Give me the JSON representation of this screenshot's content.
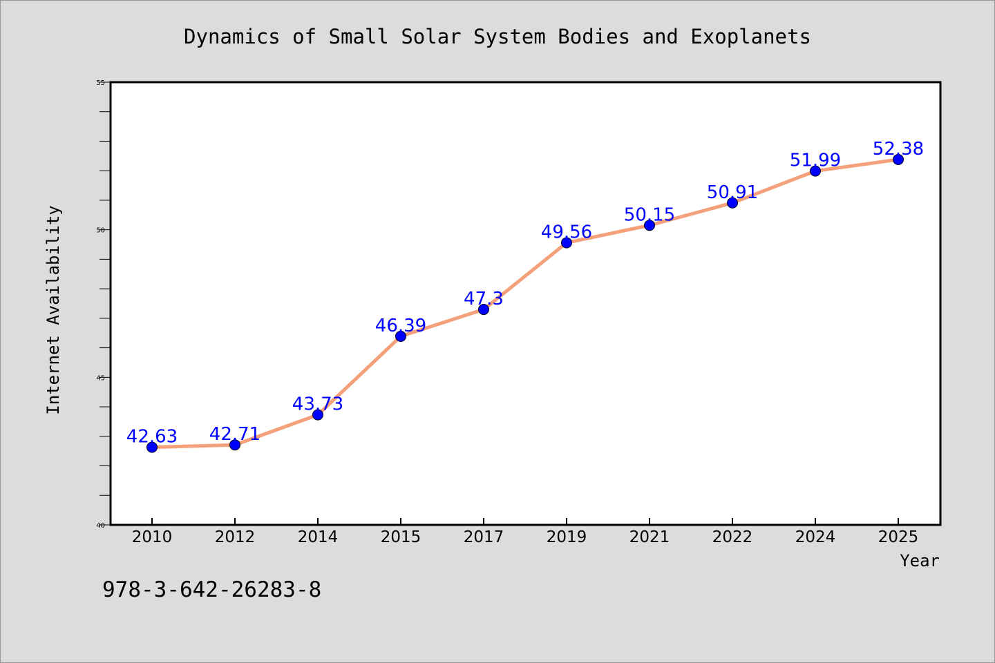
{
  "chart_data": {
    "type": "line",
    "title": "Dynamics of Small Solar System Bodies and Exoplanets",
    "xlabel": "Year",
    "ylabel": "Internet Availability",
    "categories": [
      "2010",
      "2012",
      "2014",
      "2015",
      "2017",
      "2019",
      "2021",
      "2022",
      "2024",
      "2025"
    ],
    "series": [
      {
        "values": [
          42.63,
          42.71,
          43.73,
          46.39,
          47.3,
          49.56,
          50.15,
          50.91,
          51.99,
          52.38
        ],
        "data_labels": [
          "42.63",
          "42.71",
          "43.73",
          "46.39",
          "47.3",
          "49.56",
          "50.15",
          "50.91",
          "51.99",
          "52.38"
        ],
        "line_color": "#f4a07a",
        "marker_color": "#0000ff"
      }
    ],
    "ylim": [
      40,
      55
    ],
    "yticks": [
      "40",
      "45",
      "50",
      "55"
    ],
    "yminor_step": 1,
    "grid": false,
    "legend": "none"
  },
  "footer": {
    "isbn": "978-3-642-26283-8"
  },
  "colors": {
    "background": "#dcdcdc",
    "plot_area": "#ffffff",
    "line": "#f4a07a",
    "marker": "#0000ff",
    "data_label": "#0000ff"
  }
}
